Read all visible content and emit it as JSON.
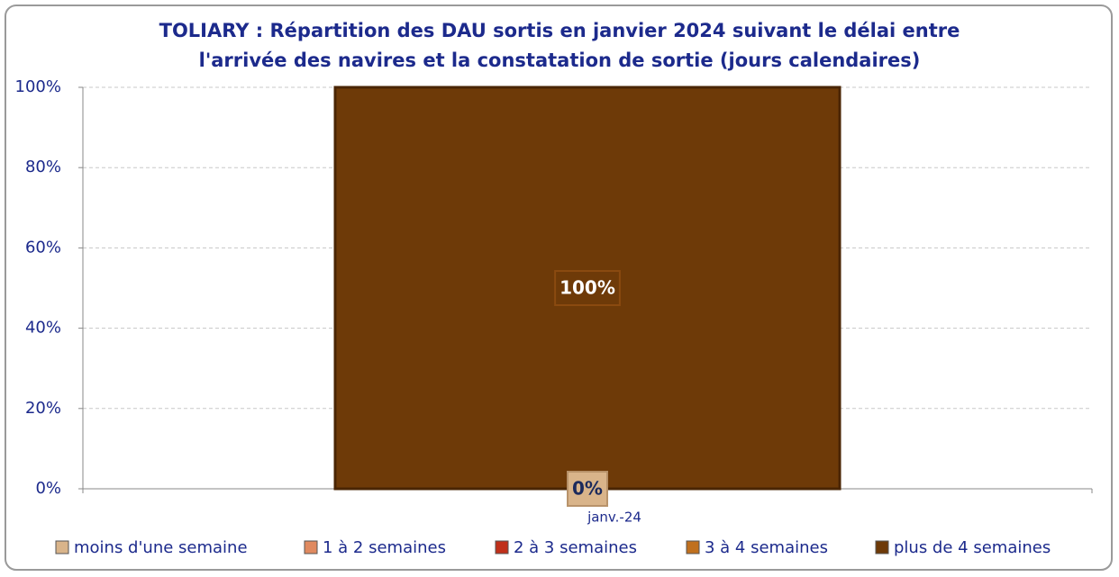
{
  "chart_data": {
    "type": "stacked_bar",
    "title": [
      "TOLIARY : Répartition des DAU sortis en janvier 2024 suivant le délai entre",
      "l'arrivée des navires et la constatation de sortie (jours calendaires)"
    ],
    "categories": [
      "janv.-24"
    ],
    "series": [
      {
        "name": "moins d'une semaine",
        "color": "#d9b48a",
        "values": [
          0
        ],
        "value_labels": [
          "0%"
        ]
      },
      {
        "name": "1 à 2 semaines",
        "color": "#e08a60",
        "values": [
          0
        ]
      },
      {
        "name": "2 à 3 semaines",
        "color": "#c0301a",
        "values": [
          0
        ]
      },
      {
        "name": "3 à 4 semaines",
        "color": "#c0701e",
        "values": [
          0
        ]
      },
      {
        "name": "plus de 4 semaines",
        "color": "#6e3a08",
        "values": [
          100
        ],
        "value_labels": [
          "100%"
        ]
      }
    ],
    "ylim": [
      0,
      100
    ],
    "yticks": [
      {
        "value": 0,
        "label": "0%"
      },
      {
        "value": 20,
        "label": "20%"
      },
      {
        "value": 40,
        "label": "40%"
      },
      {
        "value": 60,
        "label": "60%"
      },
      {
        "value": 80,
        "label": "80%"
      },
      {
        "value": 100,
        "label": "100%"
      }
    ],
    "grid": true,
    "legend": "bottom"
  }
}
